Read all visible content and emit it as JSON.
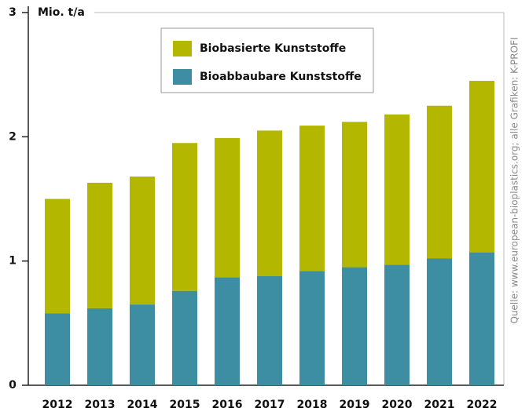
{
  "chart_data": {
    "type": "stacked_bar",
    "y_axis_label": "Mio. t/a",
    "source": "Quelle: www.european-bioplastics.org; alle Grafiken: K-PROFI",
    "categories": [
      "2012",
      "2013",
      "2014",
      "2015",
      "2016",
      "2017",
      "2018",
      "2019",
      "2020",
      "2021",
      "2022"
    ],
    "series": [
      {
        "name": "Bioabbaubare Kunststoffe",
        "color": "#3d8ea3",
        "values": [
          0.58,
          0.62,
          0.65,
          0.76,
          0.87,
          0.88,
          0.92,
          0.95,
          0.97,
          1.02,
          1.07
        ]
      },
      {
        "name": "Biobasierte Kunststoffe",
        "color": "#b3b700",
        "values": [
          0.92,
          1.01,
          1.03,
          1.19,
          1.12,
          1.17,
          1.17,
          1.17,
          1.21,
          1.23,
          1.38
        ]
      }
    ],
    "ylim": [
      0,
      3
    ],
    "yticks": [
      0,
      1,
      2,
      3
    ]
  }
}
